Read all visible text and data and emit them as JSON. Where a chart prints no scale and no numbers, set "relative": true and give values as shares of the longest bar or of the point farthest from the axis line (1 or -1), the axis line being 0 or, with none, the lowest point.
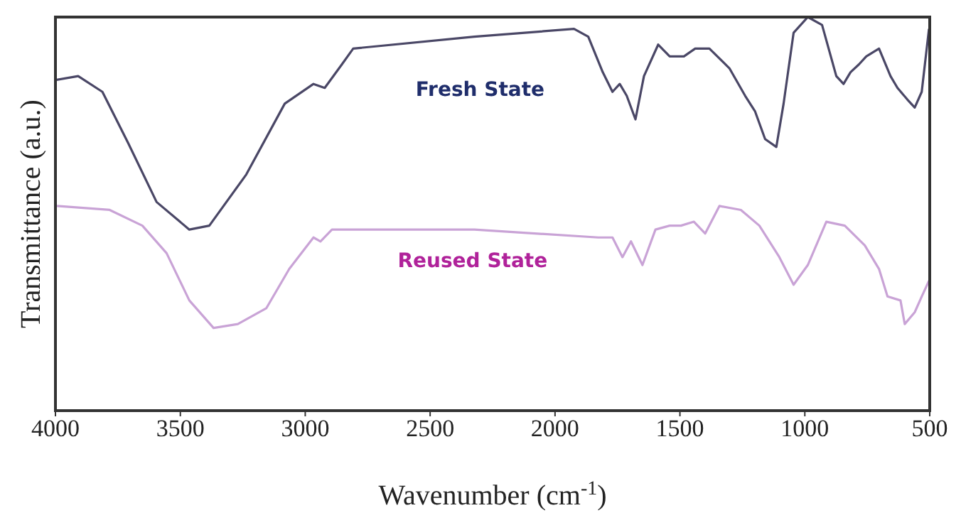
{
  "chart_data": {
    "type": "line",
    "xlabel": "Wavenumber (cm$^{-1}$)",
    "ylabel": "Transmittance (a.u.)",
    "relative": true,
    "xlim": [
      4000,
      500
    ],
    "xticks": [
      4000,
      3500,
      3000,
      2500,
      2000,
      1500,
      1000,
      500
    ],
    "grid": false,
    "legend": false,
    "marker": "none",
    "line_style": "solid",
    "series": [
      {
        "name": "Fresh State",
        "color": "#4a4766",
        "x": [
          4000,
          3909,
          3812,
          3709,
          3595,
          3464,
          3384,
          3236,
          3082,
          2967,
          2922,
          2853,
          2808,
          2323,
          1924,
          1867,
          1809,
          1770,
          1741,
          1713,
          1678,
          1644,
          1587,
          1541,
          1484,
          1439,
          1382,
          1302,
          1239,
          1199,
          1159,
          1114,
          1085,
          1045,
          988,
          931,
          874,
          845,
          817,
          783,
          754,
          703,
          657,
          629,
          589,
          560,
          532,
          503
        ],
        "values": [
          0.84,
          0.85,
          0.81,
          0.68,
          0.53,
          0.46,
          0.47,
          0.6,
          0.78,
          0.83,
          0.82,
          0.88,
          0.92,
          0.95,
          0.97,
          0.95,
          0.86,
          0.81,
          0.83,
          0.8,
          0.74,
          0.85,
          0.93,
          0.9,
          0.9,
          0.92,
          0.92,
          0.87,
          0.8,
          0.76,
          0.69,
          0.67,
          0.78,
          0.96,
          1.0,
          0.98,
          0.85,
          0.83,
          0.86,
          0.88,
          0.9,
          0.92,
          0.85,
          0.82,
          0.79,
          0.77,
          0.81,
          0.97
        ]
      },
      {
        "name": "Reused State",
        "color": "#c9a3d6",
        "x": [
          3994,
          3783,
          3652,
          3555,
          3464,
          3367,
          3270,
          3156,
          3064,
          2967,
          2939,
          2893,
          2323,
          1827,
          1770,
          1730,
          1696,
          1650,
          1598,
          1541,
          1496,
          1444,
          1399,
          1342,
          1256,
          1182,
          1102,
          1045,
          988,
          914,
          840,
          760,
          703,
          669,
          617,
          600,
          560,
          532,
          503
        ],
        "values": [
          0.52,
          0.51,
          0.47,
          0.4,
          0.28,
          0.21,
          0.22,
          0.26,
          0.36,
          0.44,
          0.43,
          0.46,
          0.46,
          0.44,
          0.44,
          0.39,
          0.43,
          0.37,
          0.46,
          0.47,
          0.47,
          0.48,
          0.45,
          0.52,
          0.51,
          0.47,
          0.39,
          0.32,
          0.37,
          0.48,
          0.47,
          0.42,
          0.36,
          0.29,
          0.28,
          0.22,
          0.25,
          0.29,
          0.33
        ]
      }
    ]
  }
}
